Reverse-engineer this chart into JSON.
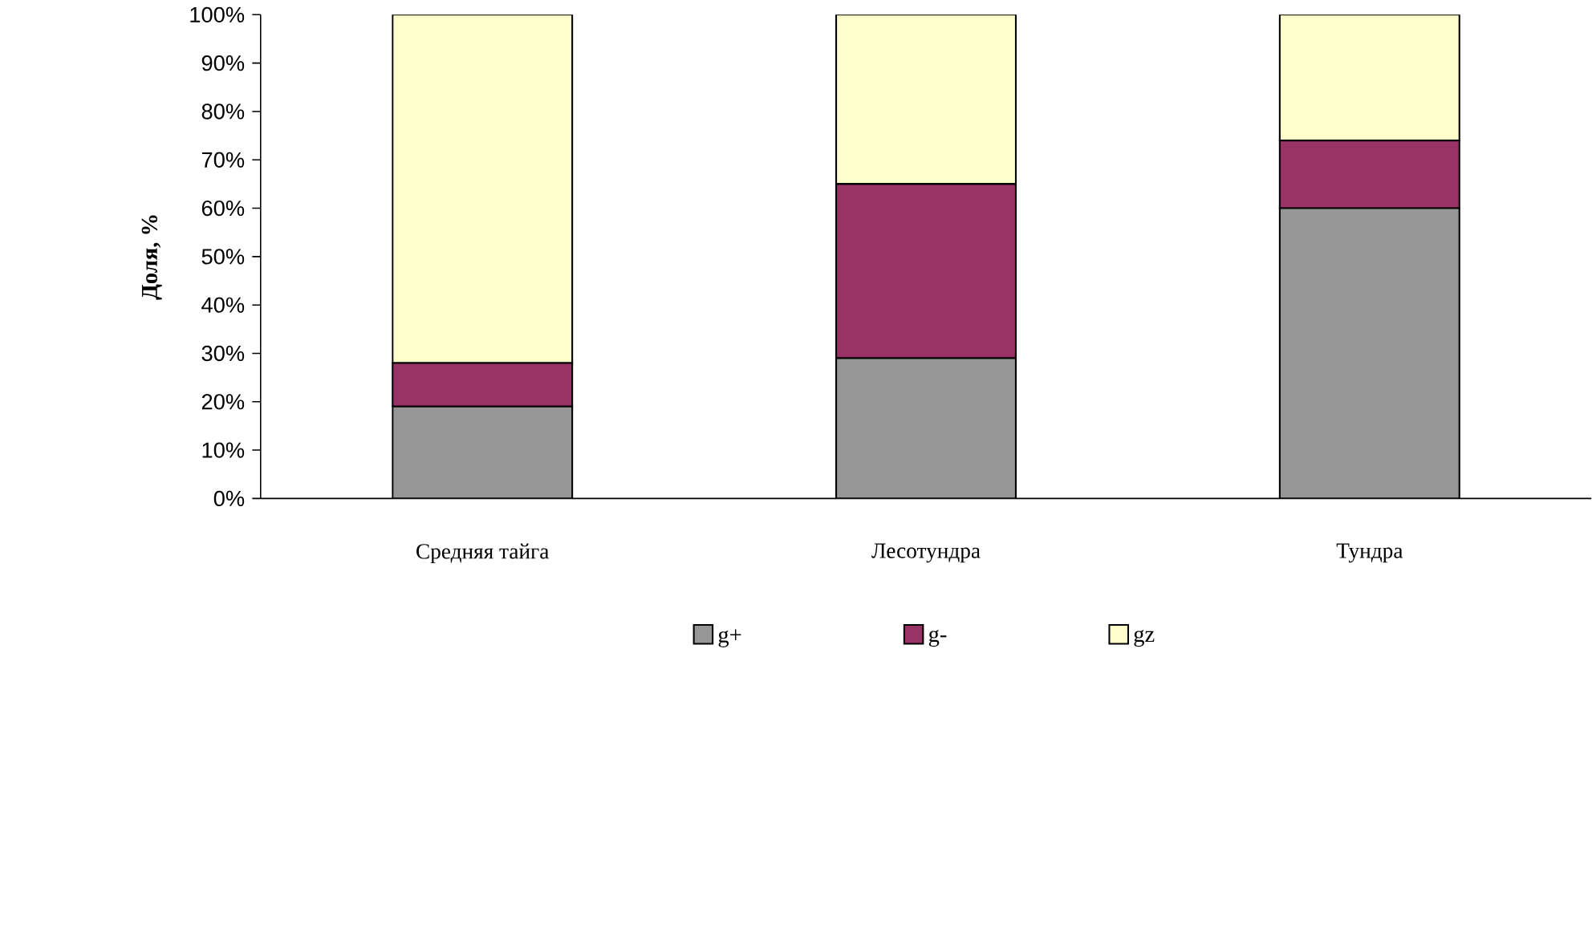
{
  "chart_data": {
    "type": "bar",
    "stacked": true,
    "ylabel": "Доля, %",
    "categories": [
      "Средняя тайга",
      "Лесотундра",
      "Тундра"
    ],
    "series": [
      {
        "name": "g+",
        "color": "#969696",
        "values": [
          19,
          29,
          60
        ]
      },
      {
        "name": "g-",
        "color": "#993366",
        "values": [
          9,
          36,
          14
        ]
      },
      {
        "name": "gz",
        "color": "#ffffcc",
        "values": [
          72,
          35,
          26
        ]
      }
    ],
    "ylim": [
      0,
      100
    ],
    "yticks": [
      {
        "value": 0,
        "label": "0%"
      },
      {
        "value": 10,
        "label": "10%"
      },
      {
        "value": 20,
        "label": "20%"
      },
      {
        "value": 30,
        "label": "30%"
      },
      {
        "value": 40,
        "label": "40%"
      },
      {
        "value": 50,
        "label": "50%"
      },
      {
        "value": 60,
        "label": "60%"
      },
      {
        "value": 70,
        "label": "70%"
      },
      {
        "value": 80,
        "label": "80%"
      },
      {
        "value": 90,
        "label": "90%"
      },
      {
        "value": 100,
        "label": "100%"
      }
    ],
    "grid": false,
    "legend": "bottom"
  }
}
